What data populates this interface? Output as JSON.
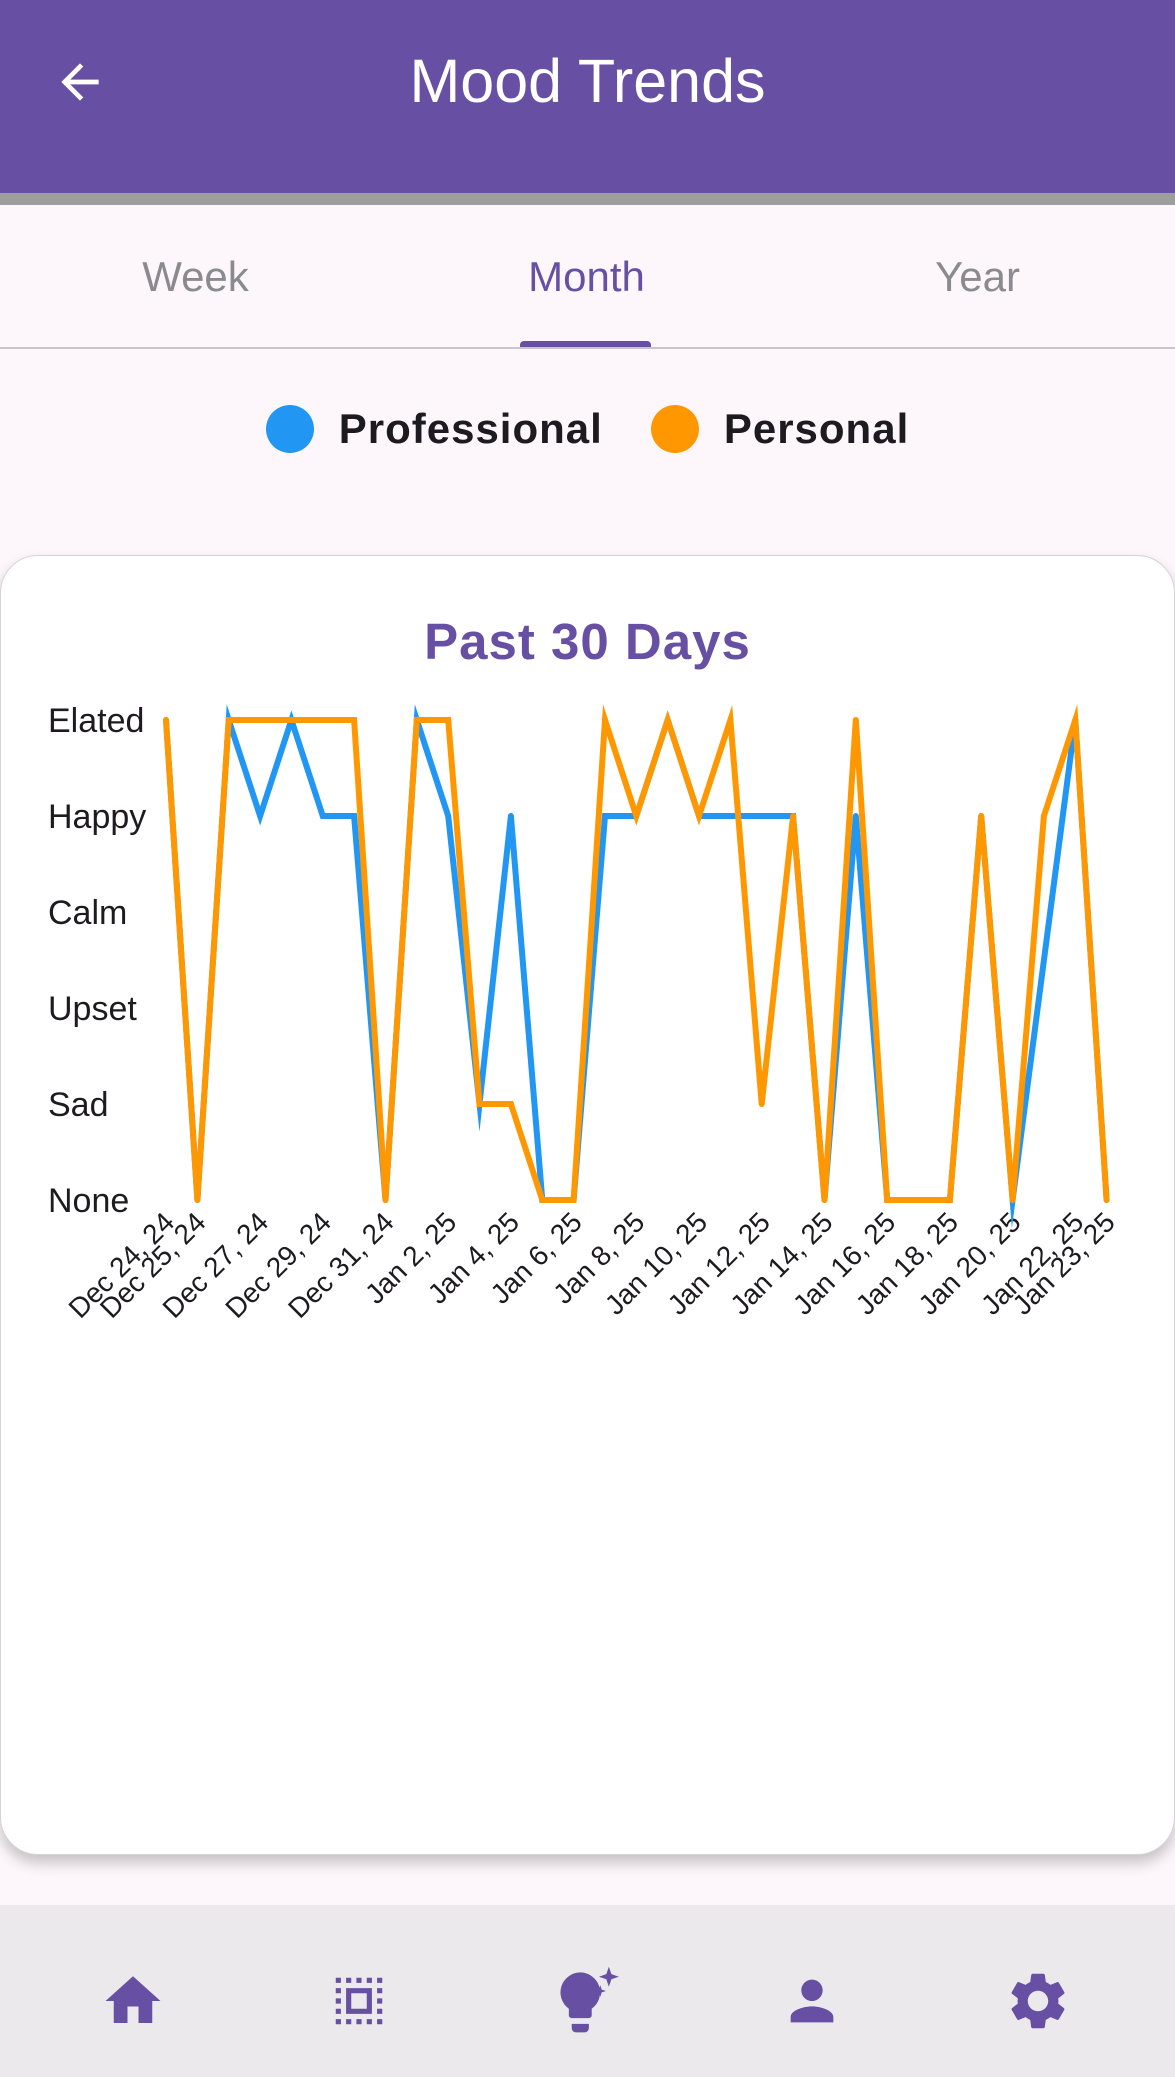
{
  "header": {
    "title": "Mood Trends"
  },
  "tabs": [
    {
      "label": "Week",
      "active": false
    },
    {
      "label": "Month",
      "active": true
    },
    {
      "label": "Year",
      "active": false
    }
  ],
  "legend": [
    {
      "label": "Professional",
      "color": "#2196f3"
    },
    {
      "label": "Personal",
      "color": "#ff9800"
    }
  ],
  "bottom_nav": [
    {
      "icon": "home-icon"
    },
    {
      "icon": "dashboard-icon"
    },
    {
      "icon": "lightbulb-sparkle-icon"
    },
    {
      "icon": "person-icon"
    },
    {
      "icon": "settings-icon"
    }
  ],
  "colors": {
    "primary": "#6750a4",
    "professional": "#2196f3",
    "personal": "#ff9800"
  },
  "chart_data": {
    "type": "line",
    "title": "Past 30 Days",
    "y_categories": [
      "None",
      "Sad",
      "Upset",
      "Calm",
      "Happy",
      "Elated"
    ],
    "x_tick_labels": [
      "Dec 24, 24",
      "Dec 25, 24",
      "Dec 27, 24",
      "Dec 29, 24",
      "Dec 31, 24",
      "Jan 2, 25",
      "Jan 4, 25",
      "Jan 6, 25",
      "Jan 8, 25",
      "Jan 10, 25",
      "Jan 12, 25",
      "Jan 14, 25",
      "Jan 16, 25",
      "Jan 18, 25",
      "Jan 20, 25",
      "Jan 22, 25",
      "Jan 23, 25"
    ],
    "x_range": [
      "Dec 24, 24",
      "Jan 24, 25"
    ],
    "grid": false,
    "legend_position": "top",
    "series": [
      {
        "name": "Professional",
        "color": "#2196f3",
        "points": [
          [
            "Dec 24, 24",
            "Elated"
          ],
          [
            "Dec 25, 24",
            "None"
          ],
          [
            "Dec 26, 24",
            "Elated"
          ],
          [
            "Dec 27, 24",
            "Happy"
          ],
          [
            "Dec 28, 24",
            "Elated"
          ],
          [
            "Dec 29, 24",
            "Happy"
          ],
          [
            "Dec 30, 24",
            "Happy"
          ],
          [
            "Dec 31, 24",
            "None"
          ],
          [
            "Jan 1, 25",
            "Elated"
          ],
          [
            "Jan 2, 25",
            "Happy"
          ],
          [
            "Jan 3, 25",
            "Sad"
          ],
          [
            "Jan 4, 25",
            "Happy"
          ],
          [
            "Jan 5, 25",
            "None"
          ],
          [
            "Jan 6, 25",
            "None"
          ],
          [
            "Jan 7, 25",
            "Happy"
          ],
          [
            "Jan 8, 25",
            "Happy"
          ],
          [
            "Jan 9, 25",
            "Elated"
          ],
          [
            "Jan 10, 25",
            "Happy"
          ],
          [
            "Jan 11, 25",
            "Happy"
          ],
          [
            "Jan 12, 25",
            "Happy"
          ],
          [
            "Jan 13, 25",
            "Happy"
          ],
          [
            "Jan 14, 25",
            "None"
          ],
          [
            "Jan 15, 25",
            "Happy"
          ],
          [
            "Jan 16, 25",
            "None"
          ],
          [
            "Jan 17, 25",
            "None"
          ],
          [
            "Jan 18, 25",
            "None"
          ],
          [
            "Jan 19, 25",
            "Happy"
          ],
          [
            "Jan 20, 25",
            "None"
          ],
          [
            "Jan 22, 25",
            "Elated"
          ],
          [
            "Jan 23, 25",
            "None"
          ]
        ]
      },
      {
        "name": "Personal",
        "color": "#ff9800",
        "points": [
          [
            "Dec 24, 24",
            "Elated"
          ],
          [
            "Dec 25, 24",
            "None"
          ],
          [
            "Dec 26, 24",
            "Elated"
          ],
          [
            "Dec 27, 24",
            "Elated"
          ],
          [
            "Dec 28, 24",
            "Elated"
          ],
          [
            "Dec 29, 24",
            "Elated"
          ],
          [
            "Dec 30, 24",
            "Elated"
          ],
          [
            "Dec 31, 24",
            "None"
          ],
          [
            "Jan 1, 25",
            "Elated"
          ],
          [
            "Jan 2, 25",
            "Elated"
          ],
          [
            "Jan 3, 25",
            "Sad"
          ],
          [
            "Jan 4, 25",
            "Sad"
          ],
          [
            "Jan 5, 25",
            "None"
          ],
          [
            "Jan 6, 25",
            "None"
          ],
          [
            "Jan 7, 25",
            "Elated"
          ],
          [
            "Jan 8, 25",
            "Happy"
          ],
          [
            "Jan 9, 25",
            "Elated"
          ],
          [
            "Jan 10, 25",
            "Happy"
          ],
          [
            "Jan 11, 25",
            "Elated"
          ],
          [
            "Jan 12, 25",
            "Sad"
          ],
          [
            "Jan 13, 25",
            "Happy"
          ],
          [
            "Jan 14, 25",
            "None"
          ],
          [
            "Jan 15, 25",
            "Elated"
          ],
          [
            "Jan 16, 25",
            "None"
          ],
          [
            "Jan 17, 25",
            "None"
          ],
          [
            "Jan 18, 25",
            "None"
          ],
          [
            "Jan 19, 25",
            "Happy"
          ],
          [
            "Jan 20, 25",
            "None"
          ],
          [
            "Jan 21, 25",
            "Happy"
          ],
          [
            "Jan 22, 25",
            "Elated"
          ],
          [
            "Jan 23, 25",
            "None"
          ]
        ]
      }
    ]
  }
}
